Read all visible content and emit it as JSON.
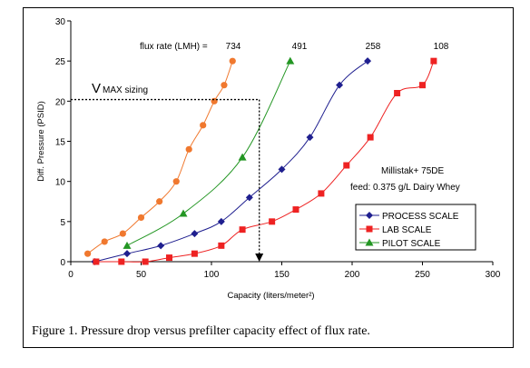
{
  "caption": "Figure 1. Pressure drop versus prefilter capacity effect of flux rate.",
  "annotations": {
    "flux_label": "flux rate (LMH) =",
    "flux_values": [
      "734",
      "491",
      "258",
      "108"
    ],
    "vmax_v": "V",
    "vmax_rest": "MAX sizing",
    "product_line1": "Millistak+ 75DE",
    "product_line2": "feed: 0.375 g/L Dairy Whey"
  },
  "chart_data": {
    "type": "line",
    "xlabel": "Capacity (liters/meter²)",
    "ylabel": "Diff. Pressure (PSID)",
    "xlim": [
      0,
      300
    ],
    "ylim": [
      0,
      30
    ],
    "xticks": [
      0,
      50,
      100,
      150,
      200,
      250,
      300
    ],
    "yticks": [
      0,
      5,
      10,
      15,
      20,
      25,
      30
    ],
    "grid": false,
    "legend_position": "right",
    "series": [
      {
        "name": "PROCESS SCALE",
        "color": "#1f1f8f",
        "marker": "diamond",
        "x": [
          17,
          40,
          64,
          88,
          107,
          127,
          150,
          170,
          191,
          211
        ],
        "y": [
          0,
          1,
          2,
          3.5,
          5,
          8,
          11.5,
          15.5,
          22,
          25
        ]
      },
      {
        "name": "LAB SCALE",
        "color": "#ee2222",
        "marker": "square",
        "x": [
          18,
          36,
          53,
          70,
          88,
          107,
          122,
          143,
          160,
          178,
          196,
          213,
          232,
          250,
          258
        ],
        "y": [
          0,
          0,
          0,
          0.5,
          1,
          2,
          4,
          5,
          6.5,
          8.5,
          12,
          15.5,
          21,
          22,
          25
        ]
      },
      {
        "name": "PILOT SCALE",
        "color": "#239623",
        "marker": "triangle",
        "x": [
          40,
          80,
          122,
          156
        ],
        "y": [
          2,
          6,
          13,
          25
        ]
      },
      {
        "name": "",
        "color": "#f0782e",
        "marker": "circle",
        "x": [
          12,
          24,
          37,
          50,
          63,
          75,
          84,
          94,
          102,
          109,
          115
        ],
        "y": [
          1,
          2.5,
          3.5,
          5.5,
          7.5,
          10,
          14,
          17,
          20,
          22,
          25
        ]
      }
    ],
    "vmax_line": {
      "y": 20.2,
      "x_end": 134,
      "x_arrow": 134,
      "y_arrow": 0
    }
  }
}
